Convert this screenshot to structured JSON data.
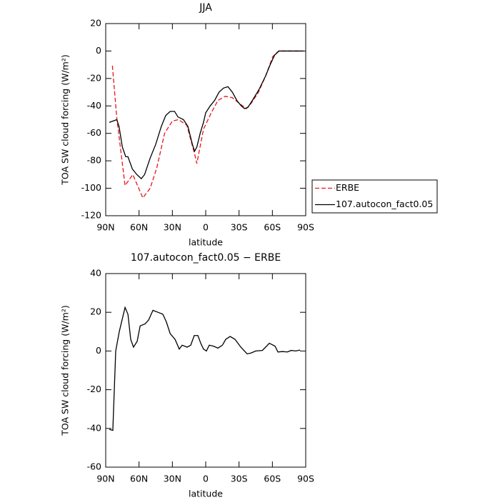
{
  "chart_data": [
    {
      "type": "line",
      "title": "JJA",
      "xlabel": "latitude",
      "ylabel": "TOA SW cloud forcing (W/m²)",
      "xlim": [
        90,
        -90
      ],
      "xticks": [
        {
          "value": 90,
          "label": "90N"
        },
        {
          "value": 60,
          "label": "60N"
        },
        {
          "value": 30,
          "label": "30N"
        },
        0,
        {
          "value": -30,
          "label": "30S"
        },
        {
          "value": -60,
          "label": "60S"
        },
        {
          "value": -90,
          "label": "90S"
        }
      ],
      "ylim": [
        -120,
        20
      ],
      "yticks": [
        20,
        0,
        -20,
        -40,
        -60,
        -80,
        -100,
        -120
      ],
      "legend": "right",
      "series": [
        {
          "name": "ERBE",
          "color": "#e8141e",
          "dash": true,
          "x": [
            84,
            80,
            72.6,
            65.6,
            56.6,
            50,
            44,
            37,
            30,
            24.5,
            17,
            10,
            8,
            2,
            -5,
            -11,
            -17.5,
            -24,
            -30,
            -36.6,
            -41,
            -47.5,
            -54,
            -60.4,
            -65.6,
            -72,
            -83.6
          ],
          "values": [
            -10.7,
            -49,
            -98,
            -90,
            -107,
            -100,
            -85,
            -60,
            -51,
            -50,
            -54,
            -75,
            -82,
            -57,
            -45,
            -36,
            -33,
            -34,
            -38,
            -42,
            -38,
            -30,
            -18,
            -4,
            0,
            0,
            0
          ]
        },
        {
          "name": "107.autocon_fact0.05",
          "color": "#000000",
          "dash": false,
          "x": [
            86.8,
            80,
            78,
            75,
            72,
            70,
            66,
            62,
            58,
            55,
            50,
            45,
            40,
            36,
            32,
            28,
            25,
            20,
            16,
            12,
            10,
            8,
            5,
            2,
            0,
            -4,
            -8,
            -12,
            -16,
            -20,
            -24,
            -28,
            -32,
            -35,
            -38,
            -42,
            -48,
            -54,
            -58,
            -62,
            -66,
            -70,
            -80,
            -88
          ],
          "values": [
            -52,
            -50,
            -55,
            -70,
            -77,
            -77,
            -86,
            -90,
            -93,
            -90,
            -78,
            -68,
            -55,
            -47,
            -44,
            -44,
            -48,
            -50,
            -55,
            -68,
            -73,
            -70,
            -60,
            -52,
            -45,
            -40,
            -36,
            -30,
            -27,
            -26,
            -30,
            -36,
            -40,
            -42,
            -41,
            -36,
            -28,
            -18,
            -10,
            -3,
            0,
            0,
            0,
            0
          ]
        }
      ]
    },
    {
      "type": "line",
      "title": "107.autocon_fact0.05 − ERBE",
      "xlabel": "latitude",
      "ylabel": "TOA SW cloud forcing (W/m²)",
      "xlim": [
        90,
        -90
      ],
      "xticks": [
        {
          "value": 90,
          "label": "90N"
        },
        {
          "value": 60,
          "label": "60N"
        },
        {
          "value": 30,
          "label": "30N"
        },
        0,
        {
          "value": -30,
          "label": "30S"
        },
        {
          "value": -60,
          "label": "60S"
        },
        {
          "value": -90,
          "label": "90S"
        }
      ],
      "ylim": [
        -60,
        40
      ],
      "yticks": [
        40,
        20,
        0,
        -20,
        -40,
        -60
      ],
      "series": [
        {
          "color": "#000000",
          "dash": false,
          "x": [
            86.8,
            83.6,
            81,
            77.8,
            72.6,
            70,
            67.5,
            65,
            61.7,
            59,
            54.6,
            51.4,
            47.5,
            43,
            38.6,
            35.4,
            32,
            27.6,
            23.8,
            21.2,
            16.7,
            13.5,
            10.3,
            7,
            4.5,
            2,
            -0.6,
            -3.2,
            -7,
            -11,
            -15,
            -18,
            -22,
            -26.4,
            -31.6,
            -37.3,
            -41,
            -45,
            -51,
            -57.3,
            -62.4,
            -65,
            -69,
            -73.5,
            -77,
            -81,
            -85
          ],
          "values": [
            -40.5,
            -41,
            0,
            10,
            22.5,
            19,
            6,
            2,
            5,
            13,
            14,
            16,
            21,
            20,
            19,
            15,
            9,
            6,
            1,
            3,
            2,
            3,
            8,
            8,
            4,
            1,
            0,
            3,
            2.5,
            1.5,
            3,
            6,
            7.5,
            6,
            2,
            -1.5,
            -1,
            0,
            0.3,
            4,
            2.5,
            -0.5,
            -0.3,
            -0.5,
            0.3,
            0,
            0.5
          ]
        }
      ]
    }
  ]
}
